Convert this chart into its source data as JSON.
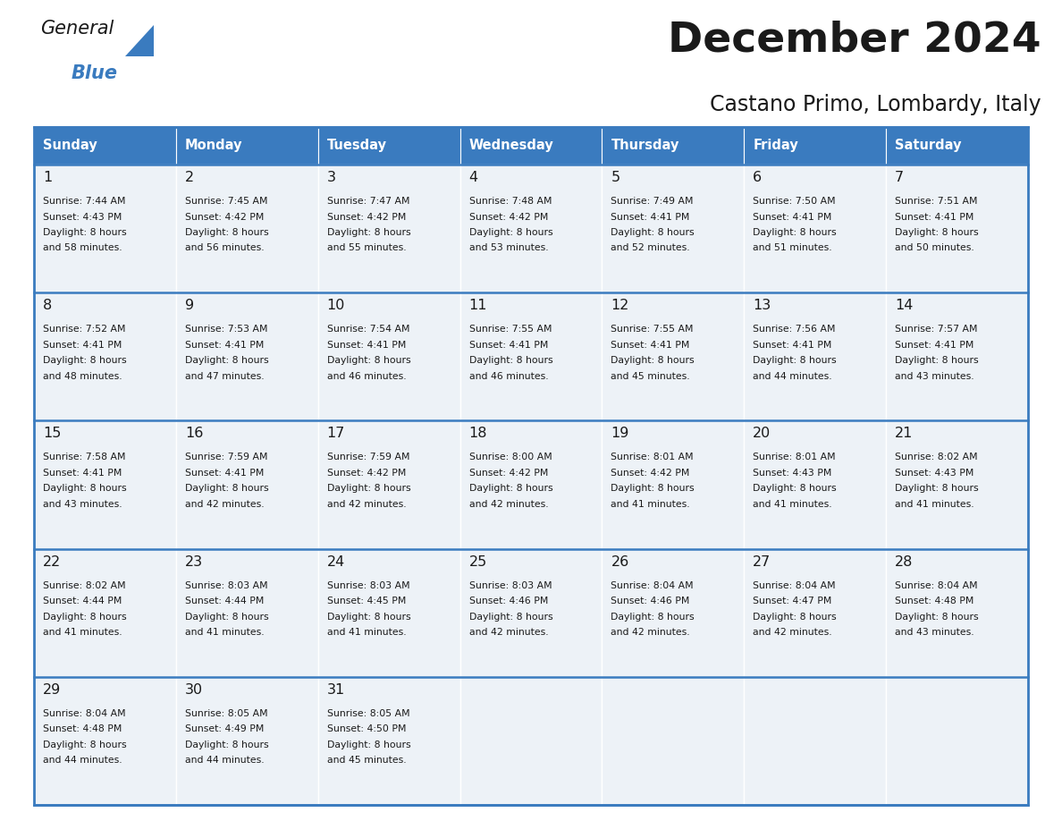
{
  "title": "December 2024",
  "subtitle": "Castano Primo, Lombardy, Italy",
  "header_color": "#3a7bbf",
  "header_text_color": "#ffffff",
  "cell_bg_color": "#edf2f7",
  "border_color": "#3a7bbf",
  "separator_color": "#3a7bbf",
  "text_color": "#1a1a1a",
  "day_names": [
    "Sunday",
    "Monday",
    "Tuesday",
    "Wednesday",
    "Thursday",
    "Friday",
    "Saturday"
  ],
  "weeks": [
    [
      {
        "day": "1",
        "sunrise": "7:44 AM",
        "sunset": "4:43 PM",
        "daylight_line1": "8 hours",
        "daylight_line2": "and 58 minutes."
      },
      {
        "day": "2",
        "sunrise": "7:45 AM",
        "sunset": "4:42 PM",
        "daylight_line1": "8 hours",
        "daylight_line2": "and 56 minutes."
      },
      {
        "day": "3",
        "sunrise": "7:47 AM",
        "sunset": "4:42 PM",
        "daylight_line1": "8 hours",
        "daylight_line2": "and 55 minutes."
      },
      {
        "day": "4",
        "sunrise": "7:48 AM",
        "sunset": "4:42 PM",
        "daylight_line1": "8 hours",
        "daylight_line2": "and 53 minutes."
      },
      {
        "day": "5",
        "sunrise": "7:49 AM",
        "sunset": "4:41 PM",
        "daylight_line1": "8 hours",
        "daylight_line2": "and 52 minutes."
      },
      {
        "day": "6",
        "sunrise": "7:50 AM",
        "sunset": "4:41 PM",
        "daylight_line1": "8 hours",
        "daylight_line2": "and 51 minutes."
      },
      {
        "day": "7",
        "sunrise": "7:51 AM",
        "sunset": "4:41 PM",
        "daylight_line1": "8 hours",
        "daylight_line2": "and 50 minutes."
      }
    ],
    [
      {
        "day": "8",
        "sunrise": "7:52 AM",
        "sunset": "4:41 PM",
        "daylight_line1": "8 hours",
        "daylight_line2": "and 48 minutes."
      },
      {
        "day": "9",
        "sunrise": "7:53 AM",
        "sunset": "4:41 PM",
        "daylight_line1": "8 hours",
        "daylight_line2": "and 47 minutes."
      },
      {
        "day": "10",
        "sunrise": "7:54 AM",
        "sunset": "4:41 PM",
        "daylight_line1": "8 hours",
        "daylight_line2": "and 46 minutes."
      },
      {
        "day": "11",
        "sunrise": "7:55 AM",
        "sunset": "4:41 PM",
        "daylight_line1": "8 hours",
        "daylight_line2": "and 46 minutes."
      },
      {
        "day": "12",
        "sunrise": "7:55 AM",
        "sunset": "4:41 PM",
        "daylight_line1": "8 hours",
        "daylight_line2": "and 45 minutes."
      },
      {
        "day": "13",
        "sunrise": "7:56 AM",
        "sunset": "4:41 PM",
        "daylight_line1": "8 hours",
        "daylight_line2": "and 44 minutes."
      },
      {
        "day": "14",
        "sunrise": "7:57 AM",
        "sunset": "4:41 PM",
        "daylight_line1": "8 hours",
        "daylight_line2": "and 43 minutes."
      }
    ],
    [
      {
        "day": "15",
        "sunrise": "7:58 AM",
        "sunset": "4:41 PM",
        "daylight_line1": "8 hours",
        "daylight_line2": "and 43 minutes."
      },
      {
        "day": "16",
        "sunrise": "7:59 AM",
        "sunset": "4:41 PM",
        "daylight_line1": "8 hours",
        "daylight_line2": "and 42 minutes."
      },
      {
        "day": "17",
        "sunrise": "7:59 AM",
        "sunset": "4:42 PM",
        "daylight_line1": "8 hours",
        "daylight_line2": "and 42 minutes."
      },
      {
        "day": "18",
        "sunrise": "8:00 AM",
        "sunset": "4:42 PM",
        "daylight_line1": "8 hours",
        "daylight_line2": "and 42 minutes."
      },
      {
        "day": "19",
        "sunrise": "8:01 AM",
        "sunset": "4:42 PM",
        "daylight_line1": "8 hours",
        "daylight_line2": "and 41 minutes."
      },
      {
        "day": "20",
        "sunrise": "8:01 AM",
        "sunset": "4:43 PM",
        "daylight_line1": "8 hours",
        "daylight_line2": "and 41 minutes."
      },
      {
        "day": "21",
        "sunrise": "8:02 AM",
        "sunset": "4:43 PM",
        "daylight_line1": "8 hours",
        "daylight_line2": "and 41 minutes."
      }
    ],
    [
      {
        "day": "22",
        "sunrise": "8:02 AM",
        "sunset": "4:44 PM",
        "daylight_line1": "8 hours",
        "daylight_line2": "and 41 minutes."
      },
      {
        "day": "23",
        "sunrise": "8:03 AM",
        "sunset": "4:44 PM",
        "daylight_line1": "8 hours",
        "daylight_line2": "and 41 minutes."
      },
      {
        "day": "24",
        "sunrise": "8:03 AM",
        "sunset": "4:45 PM",
        "daylight_line1": "8 hours",
        "daylight_line2": "and 41 minutes."
      },
      {
        "day": "25",
        "sunrise": "8:03 AM",
        "sunset": "4:46 PM",
        "daylight_line1": "8 hours",
        "daylight_line2": "and 42 minutes."
      },
      {
        "day": "26",
        "sunrise": "8:04 AM",
        "sunset": "4:46 PM",
        "daylight_line1": "8 hours",
        "daylight_line2": "and 42 minutes."
      },
      {
        "day": "27",
        "sunrise": "8:04 AM",
        "sunset": "4:47 PM",
        "daylight_line1": "8 hours",
        "daylight_line2": "and 42 minutes."
      },
      {
        "day": "28",
        "sunrise": "8:04 AM",
        "sunset": "4:48 PM",
        "daylight_line1": "8 hours",
        "daylight_line2": "and 43 minutes."
      }
    ],
    [
      {
        "day": "29",
        "sunrise": "8:04 AM",
        "sunset": "4:48 PM",
        "daylight_line1": "8 hours",
        "daylight_line2": "and 44 minutes."
      },
      {
        "day": "30",
        "sunrise": "8:05 AM",
        "sunset": "4:49 PM",
        "daylight_line1": "8 hours",
        "daylight_line2": "and 44 minutes."
      },
      {
        "day": "31",
        "sunrise": "8:05 AM",
        "sunset": "4:50 PM",
        "daylight_line1": "8 hours",
        "daylight_line2": "and 45 minutes."
      },
      null,
      null,
      null,
      null
    ]
  ]
}
